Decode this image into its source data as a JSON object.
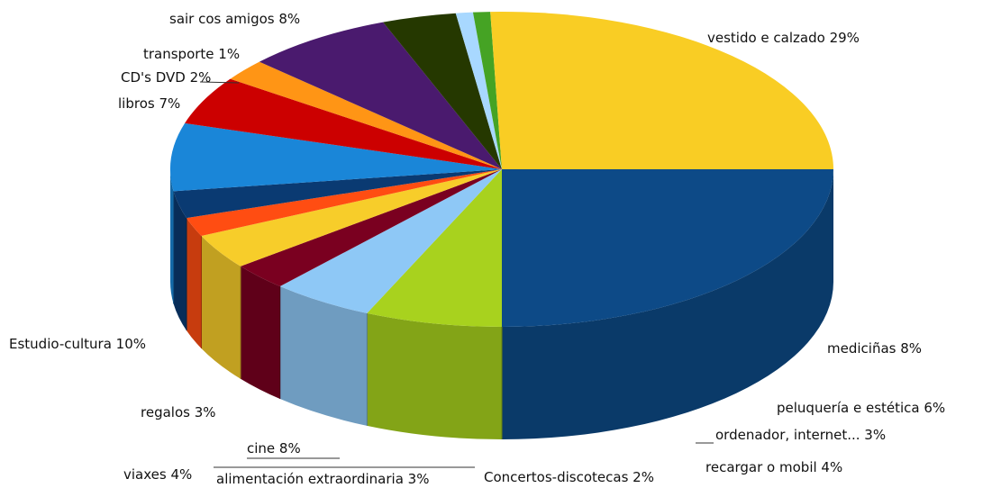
{
  "chart_data": {
    "type": "pie",
    "three_d": true,
    "slices": [
      {
        "label": "vestido e calzado 29%",
        "value": 29,
        "color": "#0d4a87"
      },
      {
        "label": "mediciñas 8%",
        "value": 8,
        "color": "#a8d21e"
      },
      {
        "label": "peluquería e estética 6%",
        "value": 6,
        "color": "#8ec8f6"
      },
      {
        "label": "ordenador, internet... 3%",
        "value": 3,
        "color": "#7a0020"
      },
      {
        "label": "recargar o mobil 4%",
        "value": 4,
        "color": "#f7cd2a"
      },
      {
        "label": "Concertos-discotecas 2%",
        "value": 2,
        "color": "#ff4d12"
      },
      {
        "label": "alimentación extraordinaria 3%",
        "value": 3,
        "color": "#0a3a72"
      },
      {
        "label": "viaxes 4%",
        "value": 4,
        "color": "#1a86d8"
      },
      {
        "label": "cine 8%",
        "value": 8,
        "color": "#cc0000"
      },
      {
        "label": "regalos 3%",
        "value": 3,
        "color": "#ff9515"
      },
      {
        "label": "Estudio-cultura 10%",
        "value": 10,
        "color": "#4a1a6e"
      },
      {
        "label": "libros 7%",
        "value": 7,
        "color": "#253800"
      },
      {
        "label": "CD's DVD 2%",
        "value": 2,
        "color": "#a8d8ff"
      },
      {
        "label": "transporte 1%",
        "value": 1,
        "color": "#45a324"
      },
      {
        "label": "sair cos amigos 8%",
        "value": 8,
        "color": "#f9cd24"
      }
    ]
  }
}
